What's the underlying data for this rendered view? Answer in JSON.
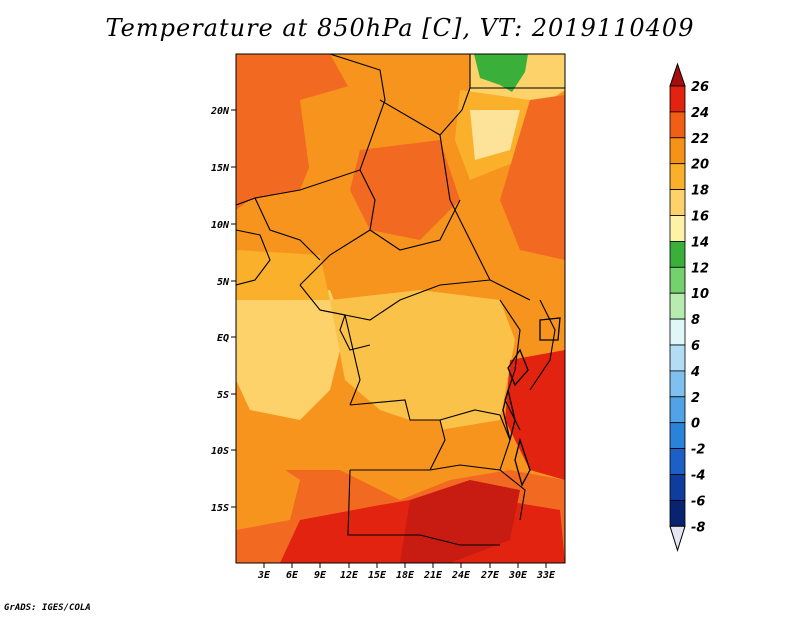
{
  "title": "Temperature at 850hPa [C], VT: 2019110409",
  "footer": "GrADS: IGES/COLA",
  "map": {
    "lon_ticks": [
      "3E",
      "6E",
      "9E",
      "12E",
      "15E",
      "18E",
      "21E",
      "24E",
      "27E",
      "30E",
      "33E"
    ],
    "lat_ticks": [
      "20N",
      "15N",
      "10N",
      "5N",
      "EQ",
      "5S",
      "10S",
      "15S"
    ]
  },
  "colorbar": {
    "levels": [
      "26",
      "24",
      "22",
      "20",
      "18",
      "16",
      "14",
      "12",
      "10",
      "8",
      "6",
      "4",
      "2",
      "0",
      "-2",
      "-4",
      "-6",
      "-8"
    ],
    "colors": [
      "#a50e0e",
      "#e1230f",
      "#f05f14",
      "#f79218",
      "#fbb02c",
      "#fdd26a",
      "#fdf3a7",
      "#3ab03a",
      "#75d16e",
      "#b7ecb0",
      "#dff7f7",
      "#b3dcf5",
      "#7fc0ee",
      "#4fa3e6",
      "#2a83d8",
      "#1b5fc7",
      "#0f3d9e",
      "#082470"
    ]
  }
}
